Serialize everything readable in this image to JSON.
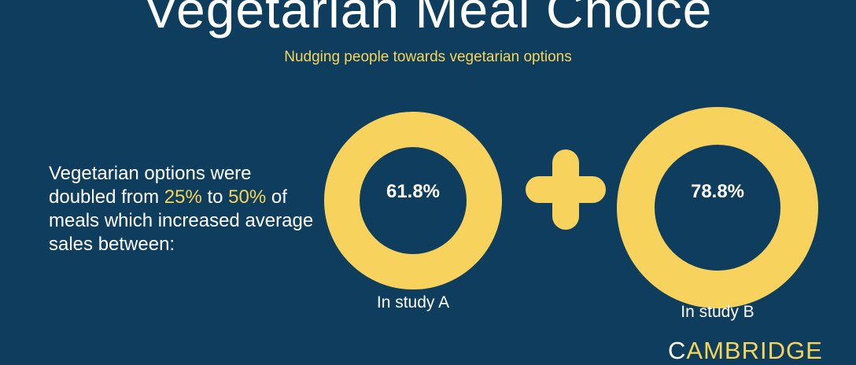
{
  "header": {
    "title": "Vegetarian Meal Choice",
    "subtitle": "Nudging people towards vegetarian options"
  },
  "description": {
    "part1": "Vegetarian options were doubled from ",
    "from_value": "25%",
    "part2": " to ",
    "to_value": "50%",
    "part3": " of meals which increased average sales between:"
  },
  "studies": [
    {
      "value": "61.8%",
      "label": "In study A"
    },
    {
      "value": "78.8%",
      "label": "In study B"
    }
  ],
  "plus_symbol": "plus-icon",
  "logo": {
    "first_letter": "C",
    "rest": "AMBRIDGE"
  },
  "colors": {
    "background": "#0f3d5e",
    "accent": "#f7d35d",
    "text": "#ffffff"
  }
}
